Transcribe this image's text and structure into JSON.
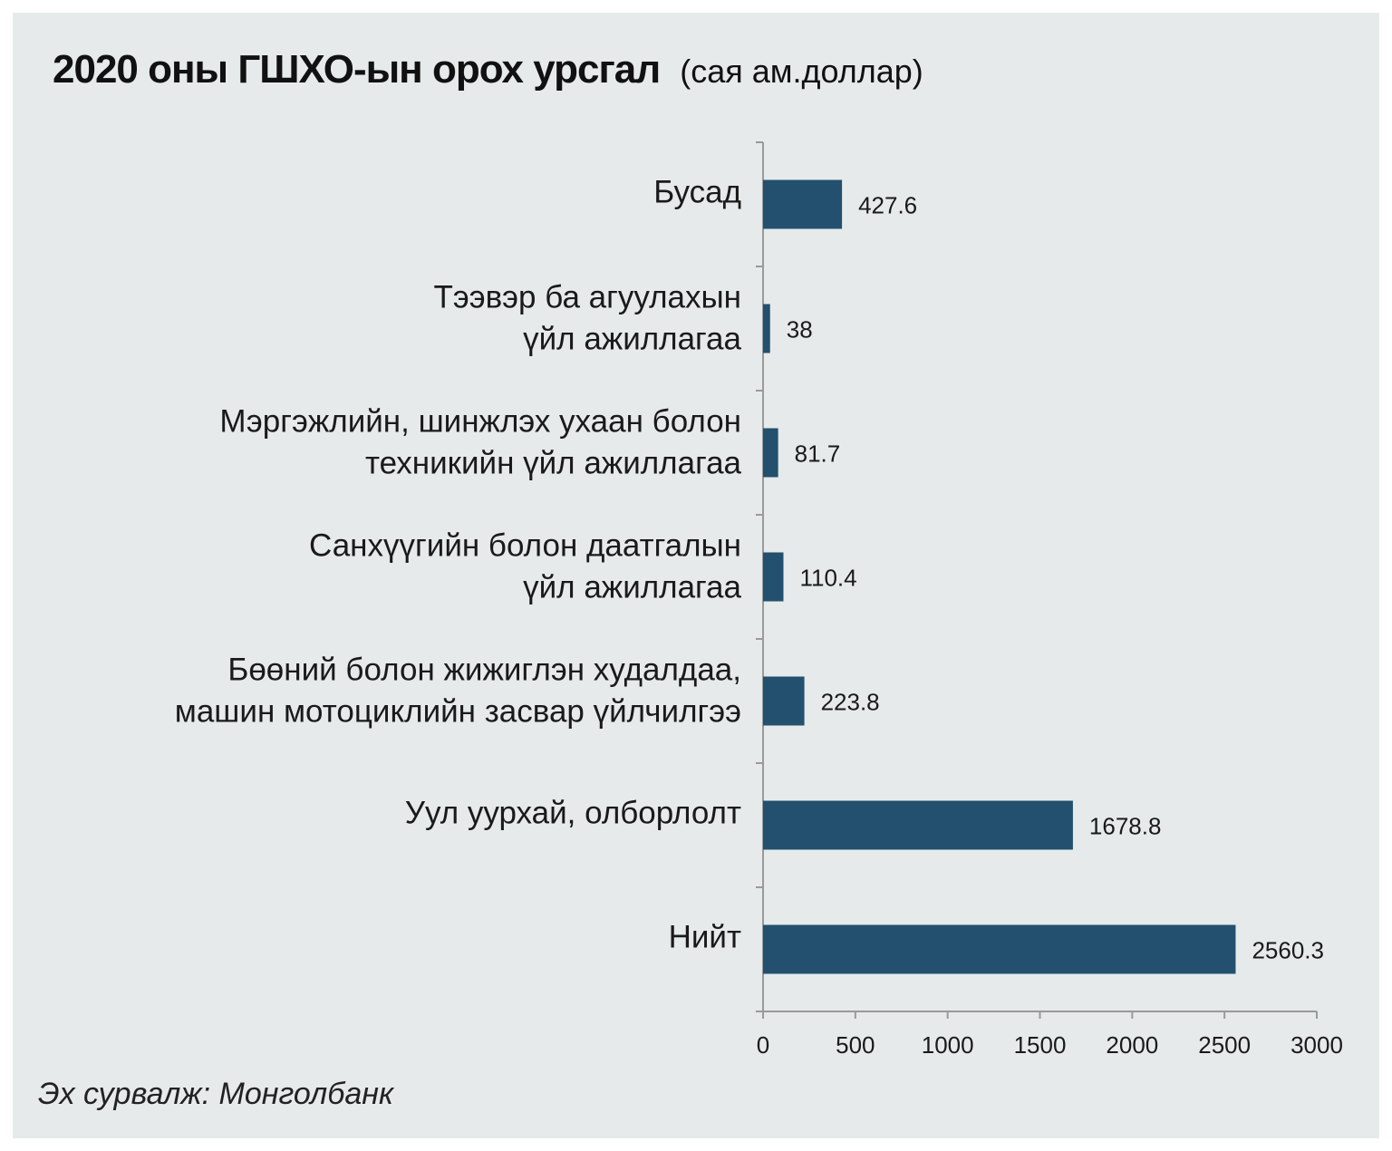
{
  "title": "2020 оны ГШХО-ын орох урсгал",
  "unit": "(сая ам.доллар)",
  "source": "Эх сурвалж: Монголбанк",
  "colors": {
    "bar": "#22506e",
    "axis": "#9a9a9a",
    "background": "#e6eaea"
  },
  "chart_data": {
    "type": "bar",
    "orientation": "horizontal",
    "title": "2020 оны ГШХО-ын орох урсгал",
    "categories": [
      [
        "Бусад"
      ],
      [
        "Тээвэр ба агуулахын",
        "үйл ажиллагаа"
      ],
      [
        "Мэргэжлийн, шинжлэх ухаан болон",
        "техникийн үйл ажиллагаа"
      ],
      [
        "Санхүүгийн болон даатгалын",
        "үйл ажиллагаа"
      ],
      [
        "Бөөний болон жижиглэн худалдаа,",
        "машин мотоциклийн засвар үйлчилгээ"
      ],
      [
        "Уул уурхай, олборлолт"
      ],
      [
        "Нийт"
      ]
    ],
    "values": [
      427.6,
      38,
      81.7,
      110.4,
      223.8,
      1678.8,
      2560.3
    ],
    "value_labels": [
      "427.6",
      "38",
      "81.7",
      "110.4",
      "223.8",
      "1678.8",
      "2560.3"
    ],
    "xlim": [
      0,
      3000
    ],
    "x_ticks": [
      "0",
      "500",
      "1000",
      "1500",
      "2000",
      "2500",
      "3000"
    ],
    "grid": false,
    "legend": "none"
  }
}
